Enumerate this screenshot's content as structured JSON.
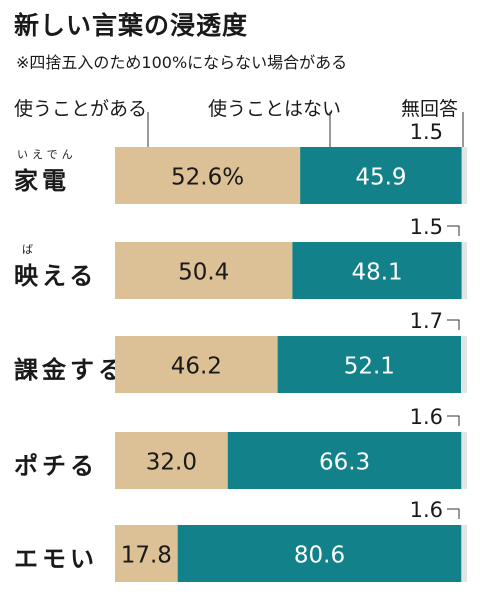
{
  "header": {
    "title": "新しい言葉の浸透度",
    "note": "※四捨五入のため100%にならない場合がある"
  },
  "chart_data": {
    "type": "bar",
    "stacked": true,
    "orientation": "horizontal",
    "title": "新しい言葉の浸透度",
    "categories": [
      "家電",
      "映える",
      "課金する",
      "ポチる",
      "エモい"
    ],
    "category_ruby": [
      "いえでん",
      "ば",
      "",
      "",
      ""
    ],
    "series": [
      {
        "name": "使うことがある",
        "values": [
          52.6,
          50.4,
          46.2,
          32.0,
          17.8
        ],
        "color": "#dcc096"
      },
      {
        "name": "使うことはない",
        "values": [
          45.9,
          48.1,
          52.1,
          66.3,
          80.6
        ],
        "color": "#12818a"
      },
      {
        "name": "無回答",
        "values": [
          1.5,
          1.5,
          1.7,
          1.6,
          1.6
        ],
        "color": "#dfe6e8"
      }
    ],
    "value_labels": [
      [
        "52.6%",
        "45.9",
        "1.5"
      ],
      [
        "50.4",
        "48.1",
        "1.5"
      ],
      [
        "46.2",
        "52.1",
        "1.7"
      ],
      [
        "32.0",
        "66.3",
        "1.6"
      ],
      [
        "17.8",
        "80.6",
        "1.6"
      ]
    ],
    "xlim": [
      0,
      100
    ],
    "legend_position": "top"
  }
}
